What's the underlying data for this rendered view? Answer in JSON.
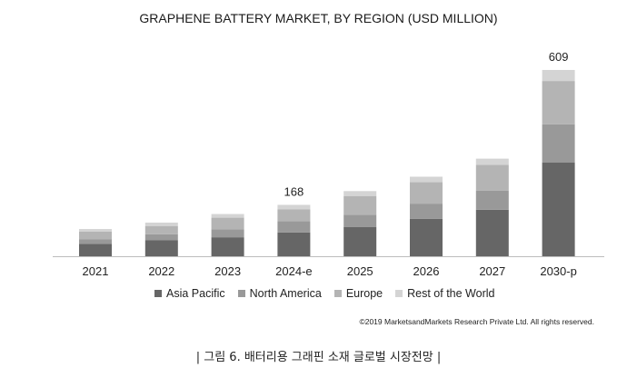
{
  "chart_data": {
    "type": "bar",
    "stacked": true,
    "title": "GRAPHENE BATTERY MARKET, BY REGION (USD MILLION)",
    "categories": [
      "2021",
      "2022",
      "2023",
      "2024-e",
      "2025",
      "2026",
      "2027",
      "2030-p"
    ],
    "series": [
      {
        "name": "Asia Pacific",
        "color": "#666666",
        "values": [
          40,
          52,
          62,
          78,
          96,
          122,
          152,
          306
        ]
      },
      {
        "name": "North America",
        "color": "#999999",
        "values": [
          16,
          20,
          26,
          37,
          40,
          50,
          62,
          125
        ]
      },
      {
        "name": "Europe",
        "color": "#b4b4b4",
        "values": [
          25,
          27,
          38,
          38,
          61,
          70,
          85,
          142
        ]
      },
      {
        "name": "Rest of the World",
        "color": "#d4d4d4",
        "values": [
          8,
          11,
          12,
          15,
          16,
          18,
          20,
          36
        ]
      }
    ],
    "data_labels": [
      {
        "category": "2024-e",
        "text": "168"
      },
      {
        "category": "2030-p",
        "text": "609"
      }
    ],
    "ylim": [
      0,
      609
    ],
    "grid": false,
    "legend": "bottom"
  },
  "copyright": "©2019 MarketsandMarkets Research Private Ltd. All rights reserved.",
  "caption": "| 그림 6. 배터리용 그래핀 소재 글로벌 시장전망 |"
}
